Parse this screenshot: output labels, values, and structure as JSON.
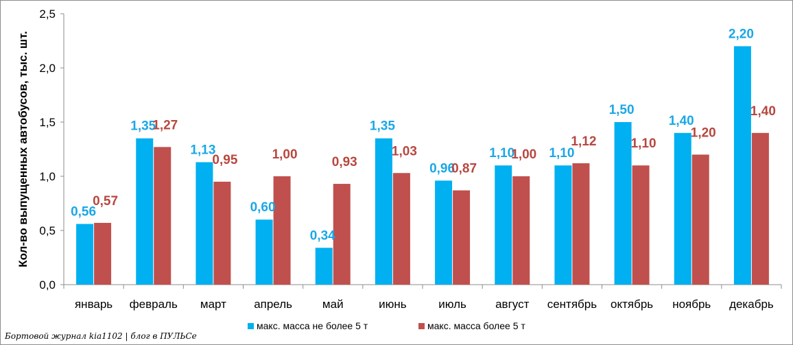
{
  "chart_data": {
    "type": "bar",
    "title": "",
    "xlabel": "",
    "ylabel": "Кол-во выпущенных автобусов, тыс. шт.",
    "ylim": [
      0,
      2.5
    ],
    "yticks": [
      "0,0",
      "0,5",
      "1,0",
      "1,5",
      "2,0",
      "2,5"
    ],
    "ytick_values": [
      0,
      0.5,
      1.0,
      1.5,
      2.0,
      2.5
    ],
    "grid": false,
    "legend_position": "bottom",
    "categories": [
      "январь",
      "февраль",
      "март",
      "апрель",
      "май",
      "июнь",
      "июль",
      "август",
      "сентябрь",
      "октябрь",
      "ноябрь",
      "декабрь"
    ],
    "series": [
      {
        "name": "макс. масса не более 5 т",
        "color": "#00B0F0",
        "label_color": "#1AA7E6",
        "values": [
          0.56,
          1.35,
          1.13,
          0.6,
          0.34,
          1.35,
          0.96,
          1.1,
          1.1,
          1.5,
          1.4,
          2.2
        ],
        "labels": [
          "0,56",
          "1,35",
          "1,13",
          "0,60",
          "0,34",
          "1,35",
          "0,96",
          "1,10",
          "1,10",
          "1,50",
          "1,40",
          "2,20"
        ]
      },
      {
        "name": "макс. масса более 5 т",
        "color": "#C0504D",
        "label_color": "#B7473F",
        "values": [
          0.57,
          1.27,
          0.95,
          1.0,
          0.93,
          1.03,
          0.87,
          1.0,
          1.12,
          1.1,
          1.2,
          1.4
        ],
        "labels": [
          "0,57",
          "1,27",
          "0,95",
          "1,00",
          "0,93",
          "1,03",
          "0,87",
          "1,00",
          "1,12",
          "1,10",
          "1,20",
          "1,40"
        ]
      }
    ]
  },
  "footer": {
    "credit": "Бортовой журнал kia1102 | блог в ПУЛЬСе"
  }
}
